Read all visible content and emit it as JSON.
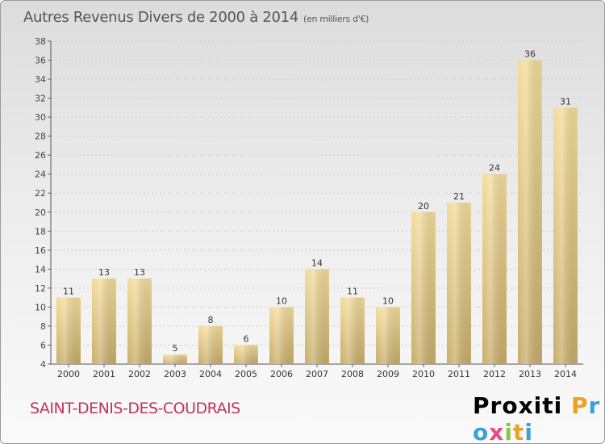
{
  "title": "Autres Revenus Divers de 2000 à 2014",
  "unit_note": "(en milliers d'€)",
  "commune": "SAINT-DENIS-DES-COUDRAIS",
  "logo_text": "Proxiti",
  "colors": {
    "bar_top": "#f3dc9a",
    "bar_bottom": "#c8ad6a",
    "commune_text": "#c0345d",
    "axis": "#555555"
  },
  "chart_data": {
    "type": "bar",
    "categories": [
      "2000",
      "2001",
      "2002",
      "2003",
      "2004",
      "2005",
      "2006",
      "2007",
      "2008",
      "2009",
      "2010",
      "2011",
      "2012",
      "2013",
      "2014"
    ],
    "values": [
      11,
      13,
      13,
      5,
      8,
      6,
      10,
      14,
      11,
      10,
      20,
      21,
      24,
      36,
      31
    ],
    "ylim": [
      4,
      38
    ],
    "yticks": [
      4,
      6,
      8,
      10,
      12,
      14,
      16,
      18,
      20,
      22,
      24,
      26,
      28,
      30,
      32,
      34,
      36,
      38
    ],
    "grid": true
  }
}
